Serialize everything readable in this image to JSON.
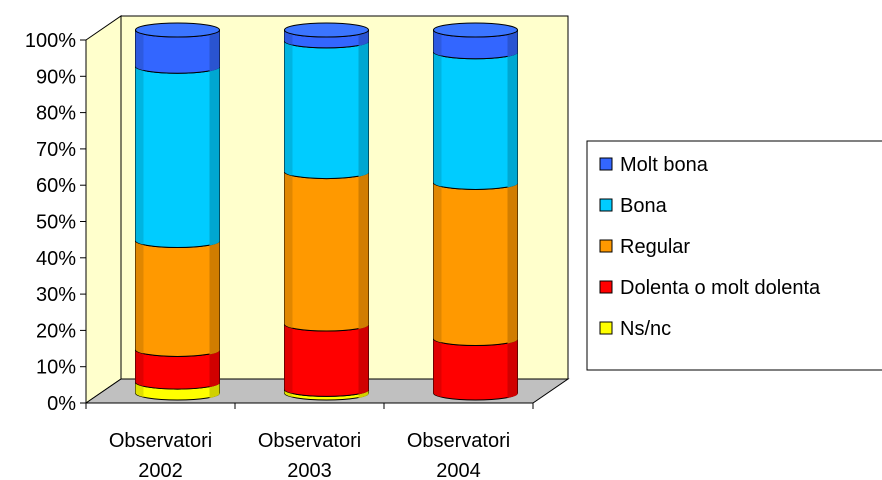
{
  "chart_data": {
    "type": "bar",
    "stacked": true,
    "normalized": true,
    "categories": [
      [
        "Observatori",
        "2002"
      ],
      [
        "Observatori",
        "2003"
      ],
      [
        "Observatori",
        "2004"
      ]
    ],
    "ylim": [
      0,
      100
    ],
    "ytick_labels": [
      "0%",
      "10%",
      "20%",
      "30%",
      "40%",
      "50%",
      "60%",
      "70%",
      "80%",
      "90%",
      "100%"
    ],
    "legend_position": "right",
    "series": [
      {
        "name": "Ns/nc",
        "color": "#ffff00",
        "values": [
          3,
          1,
          0
        ]
      },
      {
        "name": "Dolenta o molt dolenta",
        "color": "#ff0000",
        "values": [
          9,
          18,
          15
        ]
      },
      {
        "name": "Regular",
        "color": "#ff9900",
        "values": [
          30,
          42,
          43
        ]
      },
      {
        "name": "Bona",
        "color": "#00ccff",
        "values": [
          48,
          36,
          36
        ]
      },
      {
        "name": "Molt bona",
        "color": "#3366ff",
        "values": [
          10,
          3,
          6
        ]
      }
    ],
    "legend_order": [
      "Molt bona",
      "Bona",
      "Regular",
      "Dolenta o molt dolenta",
      "Ns/nc"
    ],
    "wall_color": "#ffffcc",
    "floor_color": "#c0c0c0"
  }
}
